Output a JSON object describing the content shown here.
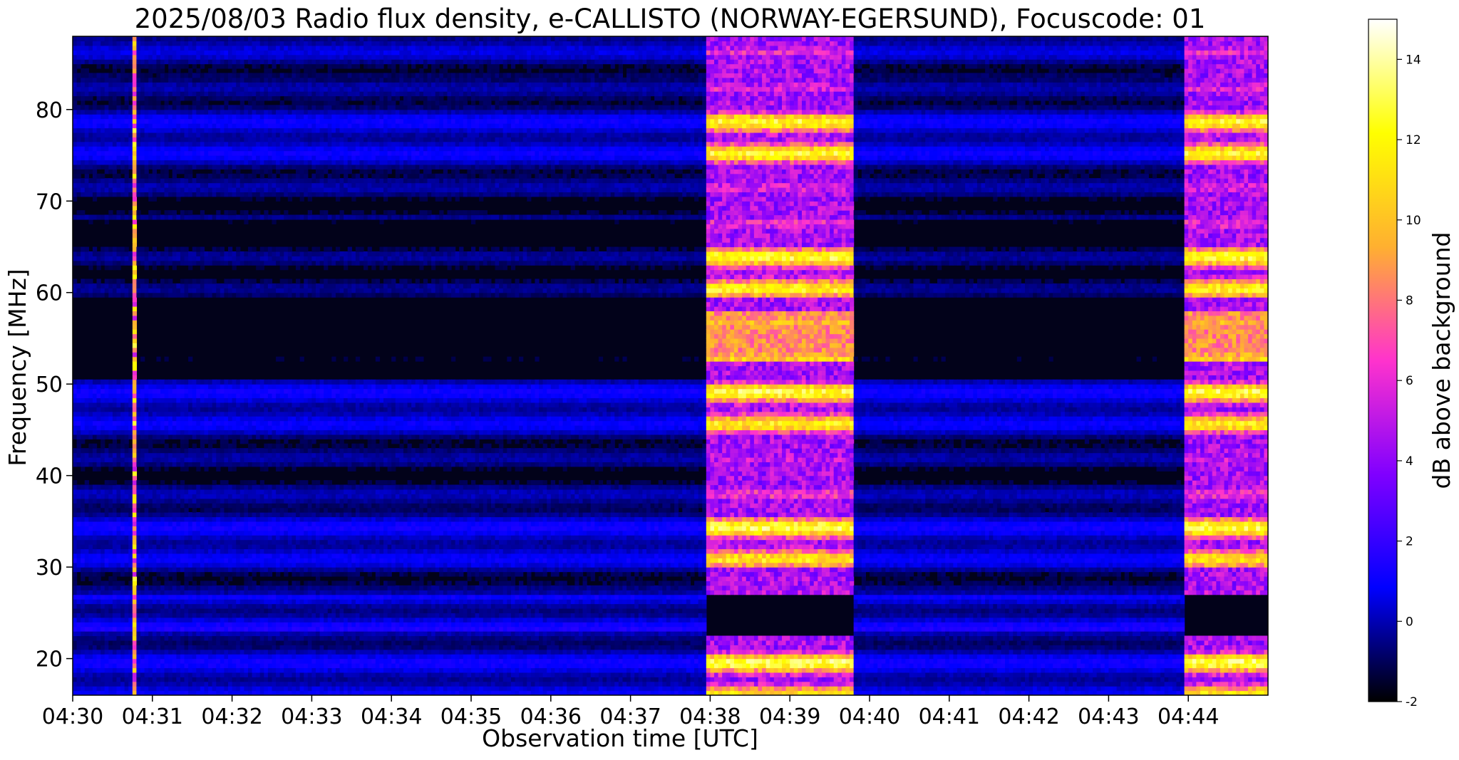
{
  "chart_data": {
    "type": "heatmap",
    "title": "2025/08/03  Radio flux density, e-CALLISTO (NORWAY-EGERSUND), Focuscode: 01",
    "xlabel": "Observation time [UTC]",
    "ylabel": "Frequency [MHz]",
    "x_tick_labels": [
      "04:30",
      "04:31",
      "04:32",
      "04:33",
      "04:34",
      "04:35",
      "04:36",
      "04:37",
      "04:38",
      "04:39",
      "04:40",
      "04:41",
      "04:42",
      "04:43",
      "04:44"
    ],
    "x_start_minute": 0,
    "x_end_minute": 15,
    "y_ticks": [
      20,
      30,
      40,
      50,
      60,
      70,
      80
    ],
    "ylim": [
      16,
      88
    ],
    "colorbar": {
      "label": "dB above background",
      "ticks": [
        -2,
        0,
        2,
        4,
        6,
        8,
        10,
        12,
        14
      ],
      "range": [
        -2,
        15
      ],
      "colormap": "gnuplot2",
      "stops": [
        "#000000",
        "#0000ff",
        "#8000ff",
        "#ff33cc",
        "#ffb030",
        "#ffff00",
        "#ffffff"
      ]
    },
    "bursts": [
      {
        "start_minute": 0.73,
        "end_minute": 0.8,
        "kind": "narrow spike",
        "peak_db": 13
      },
      {
        "start_minute": 7.97,
        "end_minute": 9.8,
        "kind": "broadband burst",
        "peak_db": 15
      },
      {
        "start_minute": 13.97,
        "end_minute": 15.0,
        "kind": "broadband burst",
        "peak_db": 15
      }
    ],
    "background_db": 0,
    "grid": false,
    "legend": "none"
  }
}
